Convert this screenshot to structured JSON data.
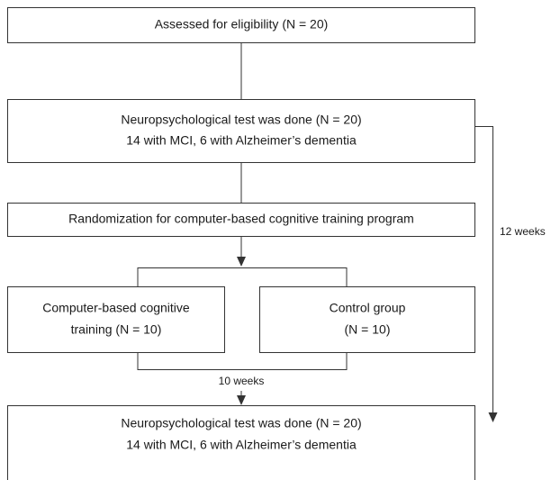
{
  "nodes": [
    {
      "lines": [
        "Assessed for eligibility (N = 20)"
      ]
    },
    {
      "lines": [
        "Neuropsychological test was done (N = 20)",
        "14 with MCI, 6 with Alzheimer’s dementia"
      ]
    },
    {
      "lines": [
        "Randomization for computer-based cognitive training program"
      ]
    },
    {
      "lines": [
        "Computer-based cognitive",
        "training (N = 10)"
      ]
    },
    {
      "lines": [
        "Control group",
        "(N = 10)"
      ]
    },
    {
      "lines": [
        "Neuropsychological test was done (N = 20)",
        "14 with MCI, 6 with Alzheimer’s dementia"
      ]
    }
  ],
  "edge_labels": [
    "10 weeks",
    "12 weeks"
  ]
}
